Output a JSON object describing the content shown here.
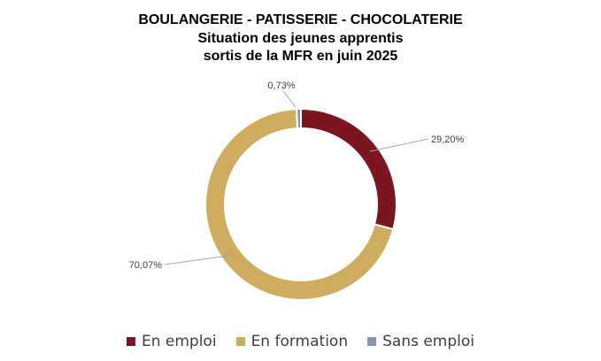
{
  "chart_data": {
    "type": "pie",
    "donut": true,
    "title": [
      "BOULANGERIE - PATISSERIE - CHOCOLATERIE",
      "Situation des jeunes apprentis",
      "sortis de la MFR en juin 2025"
    ],
    "categories": [
      "En emploi",
      "En formation",
      "Sans emploi"
    ],
    "values": [
      29.2,
      70.07,
      0.73
    ],
    "data_labels": [
      "29,20%",
      "70,07%",
      "0,73%"
    ],
    "colors": [
      "#7B1520",
      "#CFAB5E",
      "#8497B0"
    ],
    "legend_position": "bottom"
  }
}
